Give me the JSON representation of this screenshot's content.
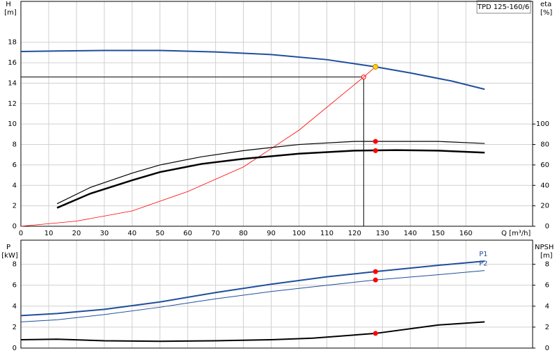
{
  "chart_data": [
    {
      "type": "line",
      "title": "TPD 125-160/6",
      "ylabel": "H",
      "yunit": "[m]",
      "y2label": "eta",
      "y2unit": "[%]",
      "xlabel": "Q [m³/h]",
      "xlim": [
        0,
        184
      ],
      "xticks": [
        0,
        10,
        20,
        30,
        40,
        50,
        60,
        70,
        80,
        90,
        100,
        110,
        120,
        130,
        140,
        150,
        160
      ],
      "ylim": [
        0,
        22
      ],
      "yticks": [
        0,
        2,
        4,
        6,
        8,
        10,
        12,
        14,
        16,
        18
      ],
      "y2lim": [
        0,
        220
      ],
      "y2ticks": [
        0,
        20,
        40,
        60,
        80,
        100
      ],
      "grid": true,
      "reference": {
        "x": 123.25,
        "y": 14.6,
        "color": "#000000",
        "marker_color": "#ff0000"
      },
      "series": [
        {
          "color": "#1f4e9c",
          "width": 2,
          "x": [
            0,
            13,
            30,
            50,
            70,
            90,
            110,
            127.5,
            140,
            155,
            166.75
          ],
          "values": [
            17.1,
            17.15,
            17.2,
            17.2,
            17.05,
            16.8,
            16.3,
            15.6,
            15.0,
            14.2,
            13.4
          ]
        },
        {
          "color": "#ff0000",
          "width": 0.8,
          "x": [
            0,
            20,
            40,
            60,
            80,
            100,
            123.25,
            127.5
          ],
          "values": [
            0,
            0.5,
            1.5,
            3.4,
            5.8,
            9.4,
            14.6,
            15.6
          ]
        },
        {
          "color": "#000000",
          "width": 1.2,
          "axis": "y2",
          "x": [
            13,
            25,
            40,
            50,
            65,
            80,
            100,
            120,
            130,
            150,
            166.75
          ],
          "values": [
            22,
            38,
            52,
            60,
            68,
            74,
            80,
            83,
            83,
            83,
            81
          ]
        },
        {
          "color": "#000000",
          "width": 2.5,
          "axis": "y2",
          "x": [
            13,
            25,
            40,
            50,
            65,
            80,
            100,
            120,
            135,
            150,
            166.75
          ],
          "values": [
            18,
            32,
            45,
            53,
            61,
            66,
            71,
            74,
            74.5,
            74,
            72
          ]
        },
        {
          "type": "scatter",
          "color": "#ff0000",
          "axis": "y2",
          "x": [
            127.5,
            127.5
          ],
          "values": [
            83,
            74
          ]
        },
        {
          "type": "scatter",
          "color": "#ffd700",
          "x": [
            127.5
          ],
          "values": [
            15.6
          ]
        }
      ]
    },
    {
      "type": "line",
      "ylabel": "P",
      "yunit": "[kW]",
      "y2label": "NPSH",
      "y2unit": "[m]",
      "xlim": [
        0,
        184
      ],
      "xticks": [
        0,
        10,
        20,
        30,
        40,
        50,
        60,
        70,
        80,
        90,
        100,
        110,
        120,
        130,
        140,
        150,
        160
      ],
      "ylim": [
        0,
        10.3
      ],
      "yticks": [
        0,
        2,
        4,
        6,
        8
      ],
      "y2lim": [
        0,
        10.3
      ],
      "y2ticks": [
        0,
        2,
        4,
        6,
        8
      ],
      "grid": true,
      "series": [
        {
          "name": "P1",
          "color": "#1f4e9c",
          "width": 2,
          "x": [
            0,
            13,
            30,
            50,
            70,
            90,
            110,
            127.5,
            150,
            166.75
          ],
          "values": [
            3.1,
            3.3,
            3.7,
            4.4,
            5.3,
            6.1,
            6.8,
            7.3,
            7.9,
            8.3
          ]
        },
        {
          "name": "P2",
          "color": "#1f4e9c",
          "width": 1,
          "x": [
            0,
            13,
            30,
            50,
            70,
            90,
            110,
            127.5,
            150,
            166.75
          ],
          "values": [
            2.5,
            2.7,
            3.2,
            3.9,
            4.7,
            5.4,
            6.0,
            6.5,
            7.0,
            7.4
          ]
        },
        {
          "color": "#000000",
          "width": 2,
          "axis": "y2",
          "x": [
            0,
            13,
            30,
            50,
            70,
            90,
            105,
            127.5,
            150,
            166.75
          ],
          "values": [
            0.8,
            0.85,
            0.7,
            0.65,
            0.7,
            0.8,
            0.95,
            1.4,
            2.2,
            2.5
          ]
        },
        {
          "type": "scatter",
          "color": "#ff0000",
          "x": [
            127.5,
            127.5
          ],
          "values": [
            7.3,
            6.5
          ]
        },
        {
          "type": "scatter",
          "color": "#ff0000",
          "axis": "y2",
          "x": [
            127.5
          ],
          "values": [
            1.4
          ]
        }
      ]
    }
  ]
}
